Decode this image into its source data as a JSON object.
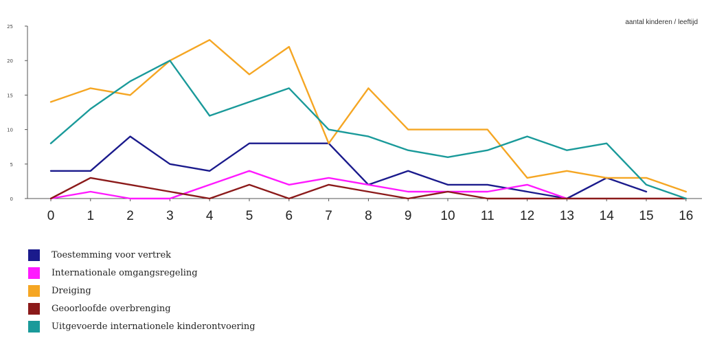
{
  "chart_data": {
    "type": "line",
    "title": "",
    "xlabel": "",
    "ylabel": "",
    "annotation": "aantal kinderen / leeftijd",
    "x": [
      0,
      1,
      2,
      3,
      4,
      5,
      6,
      7,
      8,
      9,
      10,
      11,
      12,
      13,
      14,
      15,
      16
    ],
    "ylim": [
      0,
      25
    ],
    "yticks": [
      0,
      5,
      10,
      15,
      20,
      25
    ],
    "grid": false,
    "legend_position": "bottom-left",
    "series": [
      {
        "name": "Toestemming voor vertrek",
        "color": "#1a1a8c",
        "values": [
          4,
          4,
          9,
          5,
          4,
          8,
          8,
          8,
          2,
          4,
          2,
          2,
          1,
          0,
          3,
          1,
          null
        ]
      },
      {
        "name": "Internationale omgangsregeling",
        "color": "#ff19ff",
        "values": [
          0,
          1,
          0,
          0,
          2,
          4,
          2,
          3,
          2,
          1,
          1,
          1,
          2,
          0,
          null,
          null,
          null
        ]
      },
      {
        "name": "Dreiging",
        "color": "#f5a623",
        "values": [
          14,
          16,
          15,
          20,
          23,
          18,
          22,
          8,
          16,
          10,
          10,
          10,
          3,
          4,
          3,
          3,
          1
        ]
      },
      {
        "name": "Geoorloofde overbrenging",
        "color": "#8b1a1a",
        "values": [
          0,
          3,
          2,
          1,
          0,
          2,
          0,
          2,
          1,
          0,
          1,
          0,
          0,
          0,
          0,
          0,
          0
        ]
      },
      {
        "name": "Uitgevoerde internationele kinderontvoering",
        "color": "#1a9a9a",
        "values": [
          8,
          13,
          17,
          20,
          12,
          14,
          16,
          10,
          9,
          7,
          6,
          7,
          9,
          7,
          8,
          2,
          0
        ]
      }
    ]
  }
}
